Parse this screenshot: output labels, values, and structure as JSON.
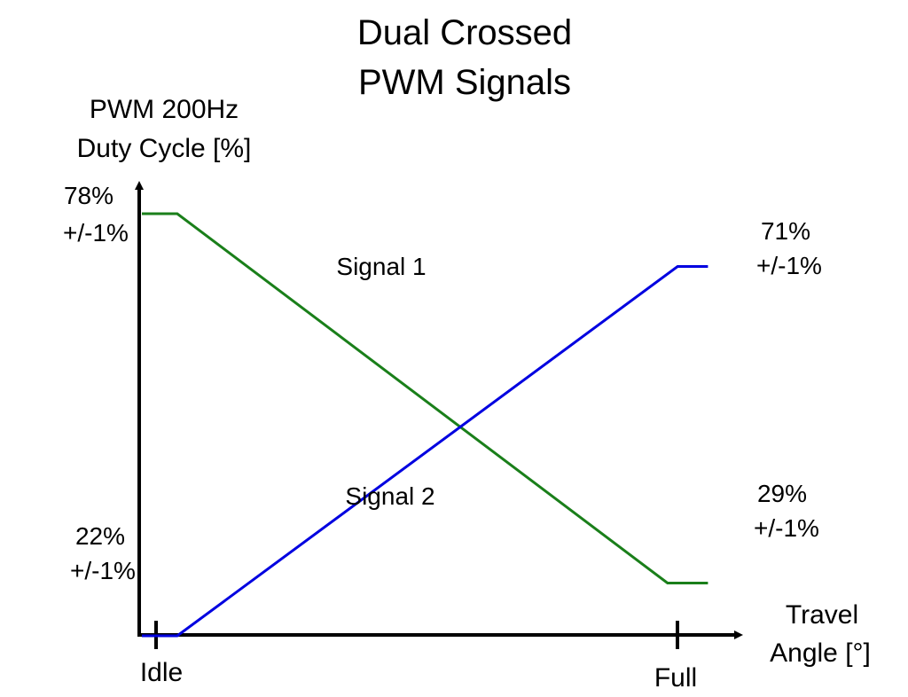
{
  "chart_data": {
    "type": "line",
    "title_lines": [
      "Dual Crossed",
      "PWM Signals"
    ],
    "ylabel_lines": [
      "PWM 200Hz",
      "Duty Cycle [%]"
    ],
    "xlabel_lines": [
      "Travel",
      "Angle [°]"
    ],
    "x_tick_labels": [
      "Idle",
      "Full"
    ],
    "ylim": [
      0,
      100
    ],
    "colors": {
      "signal1": "#1a7f1a",
      "signal2": "#0000e0",
      "axis": "#000000"
    },
    "series": [
      {
        "name": "Signal 1",
        "x": [
          0.0,
          0.07,
          1.04,
          1.12
        ],
        "y": [
          78,
          78,
          29,
          29
        ],
        "start_value_lines": [
          "78%",
          "+/-1%"
        ],
        "end_value_lines": [
          "29%",
          "+/-1%"
        ]
      },
      {
        "name": "Signal 2",
        "x": [
          0.0,
          0.07,
          1.06,
          1.12
        ],
        "y": [
          22,
          22,
          71,
          71
        ],
        "start_value_lines": [
          "22%",
          "+/-1%"
        ],
        "end_value_lines": [
          "71%",
          "+/-1%"
        ]
      }
    ]
  }
}
